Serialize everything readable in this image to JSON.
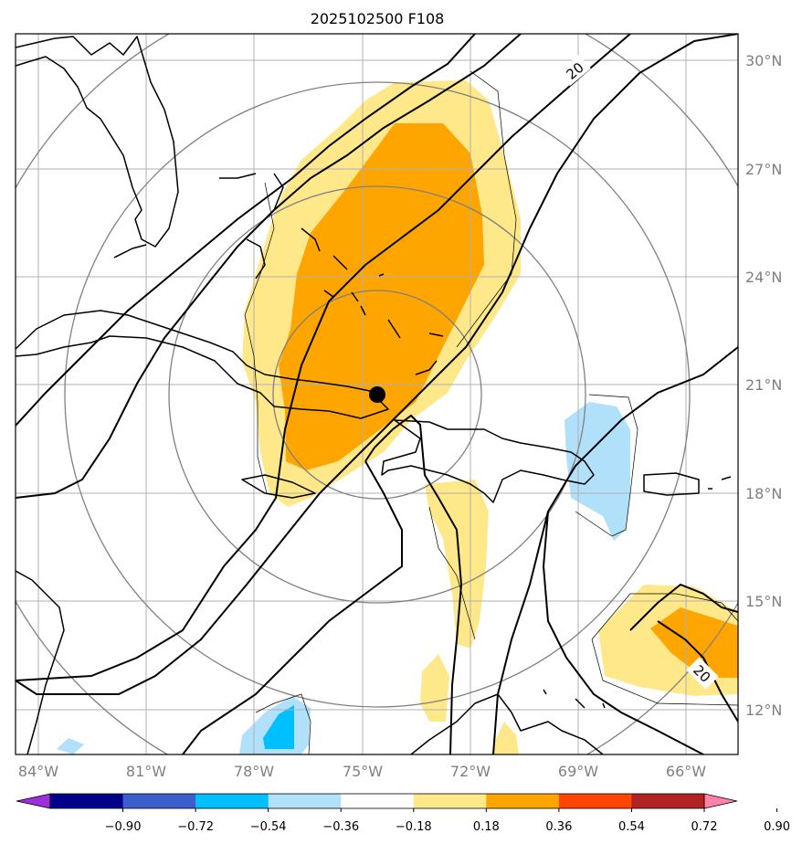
{
  "title": "2025102500 F108",
  "map": {
    "lon_labels": [
      "84°W",
      "81°W",
      "78°W",
      "75°W",
      "72°W",
      "69°W",
      "66°W"
    ],
    "lat_labels": [
      "30°N",
      "27°N",
      "24°N",
      "21°N",
      "18°N",
      "15°N",
      "12°N"
    ],
    "contour_labels": [
      "20",
      "20"
    ],
    "storm_center": {
      "lon": -74.7,
      "lat": 20.7
    },
    "colors": {
      "shade_018_036": "#ffe88a",
      "shade_036_054": "#ffa500",
      "shade_neg_036_018": "#b0e0fa",
      "shade_neg_054_036": "#00bfff",
      "grid": "#b0b0b0",
      "range_rings": "#808080",
      "contours": "#000000"
    }
  },
  "colorbar": {
    "ticks": [
      "−0.90",
      "−0.72",
      "−0.54",
      "−0.36",
      "−0.18",
      "0.18",
      "0.36",
      "0.54",
      "0.72",
      "0.90"
    ],
    "colors": [
      "#9b30d9",
      "#00008b",
      "#3a5fcd",
      "#00bfff",
      "#b0e0fa",
      "#ffffff",
      "#ffe88a",
      "#ffa500",
      "#ff4500",
      "#b22222",
      "#ff82ab"
    ]
  }
}
